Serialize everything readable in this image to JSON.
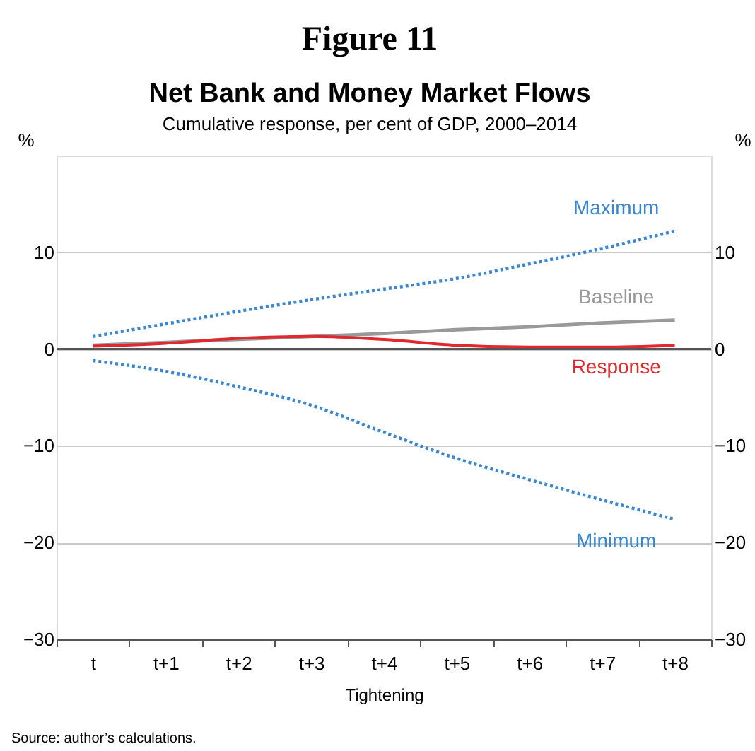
{
  "chart_data": {
    "type": "line",
    "title": "Net Bank and Money Market Flows",
    "subtitle": "Cumulative response, per cent of GDP, 2000–2014",
    "xlabel": "Tightening",
    "ylabel": "%",
    "y2label": "%",
    "categories": [
      "t",
      "t+1",
      "t+2",
      "t+3",
      "t+4",
      "t+5",
      "t+6",
      "t+7",
      "t+8"
    ],
    "series": [
      {
        "name": "Maximum",
        "color": "#3a87d0",
        "line_style": "dotted",
        "values": [
          1.3,
          2.6,
          3.9,
          5.1,
          6.2,
          7.3,
          8.8,
          10.4,
          12.2
        ]
      },
      {
        "name": "Baseline",
        "color": "#999999",
        "line_style": "solid",
        "values": [
          0.4,
          0.7,
          1.0,
          1.3,
          1.6,
          2.0,
          2.3,
          2.7,
          3.0
        ]
      },
      {
        "name": "Response",
        "color": "#e0282e",
        "line_style": "solid",
        "values": [
          0.3,
          0.6,
          1.1,
          1.3,
          1.0,
          0.4,
          0.2,
          0.2,
          0.4
        ]
      },
      {
        "name": "Minimum",
        "color": "#3a87d0",
        "line_style": "dotted",
        "values": [
          -1.2,
          -2.3,
          -3.9,
          -5.8,
          -8.6,
          -11.3,
          -13.5,
          -15.6,
          -17.6
        ]
      }
    ],
    "ylim": [
      -30,
      20
    ],
    "yticks": [
      -30,
      -20,
      -10,
      0,
      10
    ],
    "y2lim": [
      -30,
      20
    ],
    "y2ticks": [
      -30,
      -20,
      -10,
      0,
      10
    ],
    "grid": "y",
    "marker": "none",
    "ref_lines": [
      {
        "axis": "y",
        "value": 0,
        "color": "#555555"
      }
    ],
    "annotations": [
      "Figure 11",
      "Source:    author’s calculations."
    ]
  }
}
